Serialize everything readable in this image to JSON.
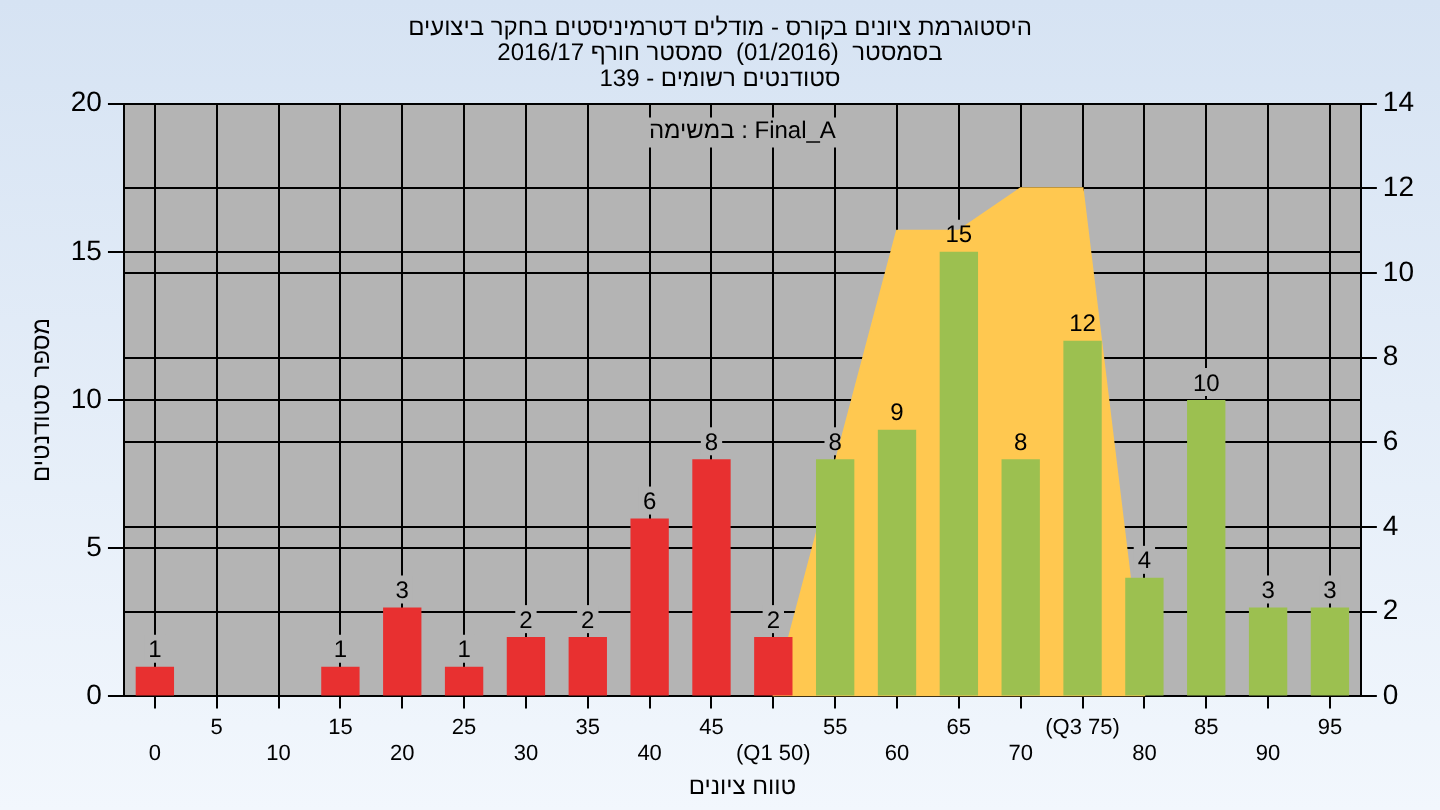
{
  "chart_data": {
    "type": "bar",
    "title": [
      "היסטוגרמת ציונים בקורס - מודלים דטרמיניסטים בחקר ביצועים",
      "בסמסטר  (01/2016)  סמסטר חורף 2016/17",
      "סטודנטים רשומים - 139"
    ],
    "xlabel": "טווח ציונים",
    "ylabel": "מספר סטודנטים",
    "annotations": [
      "במשימה : Final_A"
    ],
    "categories": [
      "0",
      "5",
      "10",
      "15",
      "20",
      "25",
      "30",
      "35",
      "40",
      "45",
      "(Q1 50)",
      "55",
      "60",
      "65",
      "70",
      "(Q3 75)",
      "80",
      "85",
      "90",
      "95"
    ],
    "series": [
      {
        "type": "area",
        "axis": "y2",
        "color": "#ffc850",
        "values": [
          null,
          null,
          null,
          null,
          null,
          null,
          null,
          null,
          null,
          null,
          0,
          5.5,
          11,
          11,
          12,
          12,
          0,
          null,
          null,
          null
        ]
      },
      {
        "colors": [
          "#e83030",
          "#e83030",
          "#e83030",
          "#e83030",
          "#e83030",
          "#e83030",
          "#e83030",
          "#e83030",
          "#e83030",
          "#e83030",
          "#e83030",
          "#9cc050",
          "#9cc050",
          "#9cc050",
          "#9cc050",
          "#9cc050",
          "#9cc050",
          "#9cc050",
          "#9cc050",
          "#9cc050"
        ],
        "values": [
          1,
          0,
          0,
          1,
          3,
          1,
          2,
          2,
          6,
          8,
          2,
          8,
          9,
          15,
          8,
          12,
          4,
          10,
          3,
          3
        ],
        "value_labels": [
          "1",
          null,
          null,
          "1",
          "3",
          "1",
          "2",
          "2",
          "6",
          "8",
          "2",
          "8",
          "9",
          "15",
          "8",
          "12",
          "4",
          "10",
          "3",
          "3"
        ]
      }
    ],
    "ylim": [
      0,
      20
    ],
    "yticks": [
      0,
      5,
      10,
      15,
      20
    ],
    "y2lim": [
      0,
      14
    ],
    "y2ticks": [
      0,
      2,
      4,
      6,
      8,
      10,
      12,
      14
    ],
    "grid": true,
    "legend": false
  }
}
